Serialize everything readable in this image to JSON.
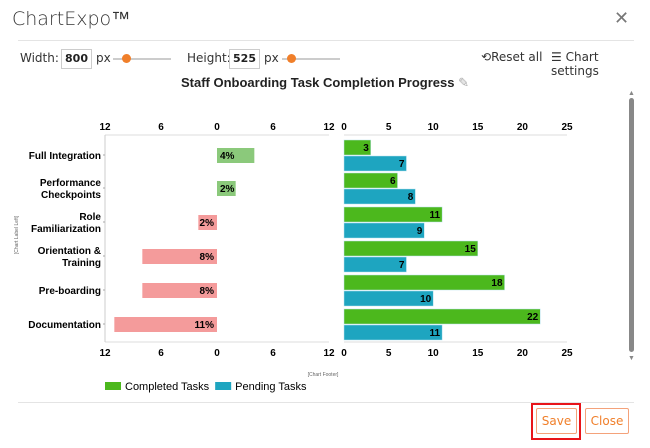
{
  "app": {
    "title": "ChartExpo™",
    "close_icon": "close-icon"
  },
  "toolbar": {
    "width_label": "Width:",
    "width_value": "800",
    "height_label": "Height:",
    "height_value": "525",
    "unit": "px",
    "reset_label": "Reset all",
    "settings_label": "Chart settings",
    "width_slider_pct": 30,
    "height_slider_pct": 30
  },
  "chart_data": {
    "type": "bar",
    "title": "Staff Onboarding Task Completion Progress",
    "categories": [
      "Full Integration",
      "Performance Checkpoints",
      "Role Familiarization",
      "Orientation & Training",
      "Pre-boarding",
      "Documentation"
    ],
    "left_panel": {
      "values": [
        4,
        2,
        -2,
        -8,
        -8,
        -11
      ],
      "labels": [
        "4%",
        "2%",
        "2%",
        "8%",
        "8%",
        "11%"
      ],
      "xlim": [
        -12,
        12
      ],
      "ticks": [
        "12",
        "6",
        "0",
        "6",
        "12"
      ],
      "positive_color": "#8bc97b",
      "negative_color": "#f49b9b"
    },
    "right_panel": {
      "xlim": [
        0,
        25
      ],
      "ticks": [
        "0",
        "5",
        "10",
        "15",
        "20",
        "25"
      ],
      "series": [
        {
          "name": "Completed Tasks",
          "values": [
            3,
            6,
            11,
            15,
            18,
            22
          ],
          "color": "#4cb81d"
        },
        {
          "name": "Pending Tasks",
          "values": [
            7,
            8,
            9,
            7,
            10,
            11
          ],
          "color": "#1ea5c0"
        }
      ]
    },
    "ylabel_placeholder": "[Chart Label Left]",
    "footer_placeholder": "[Chart Footer]",
    "legend": "bottom-left"
  },
  "footer": {
    "save_label": "Save",
    "close_label": "Close"
  }
}
